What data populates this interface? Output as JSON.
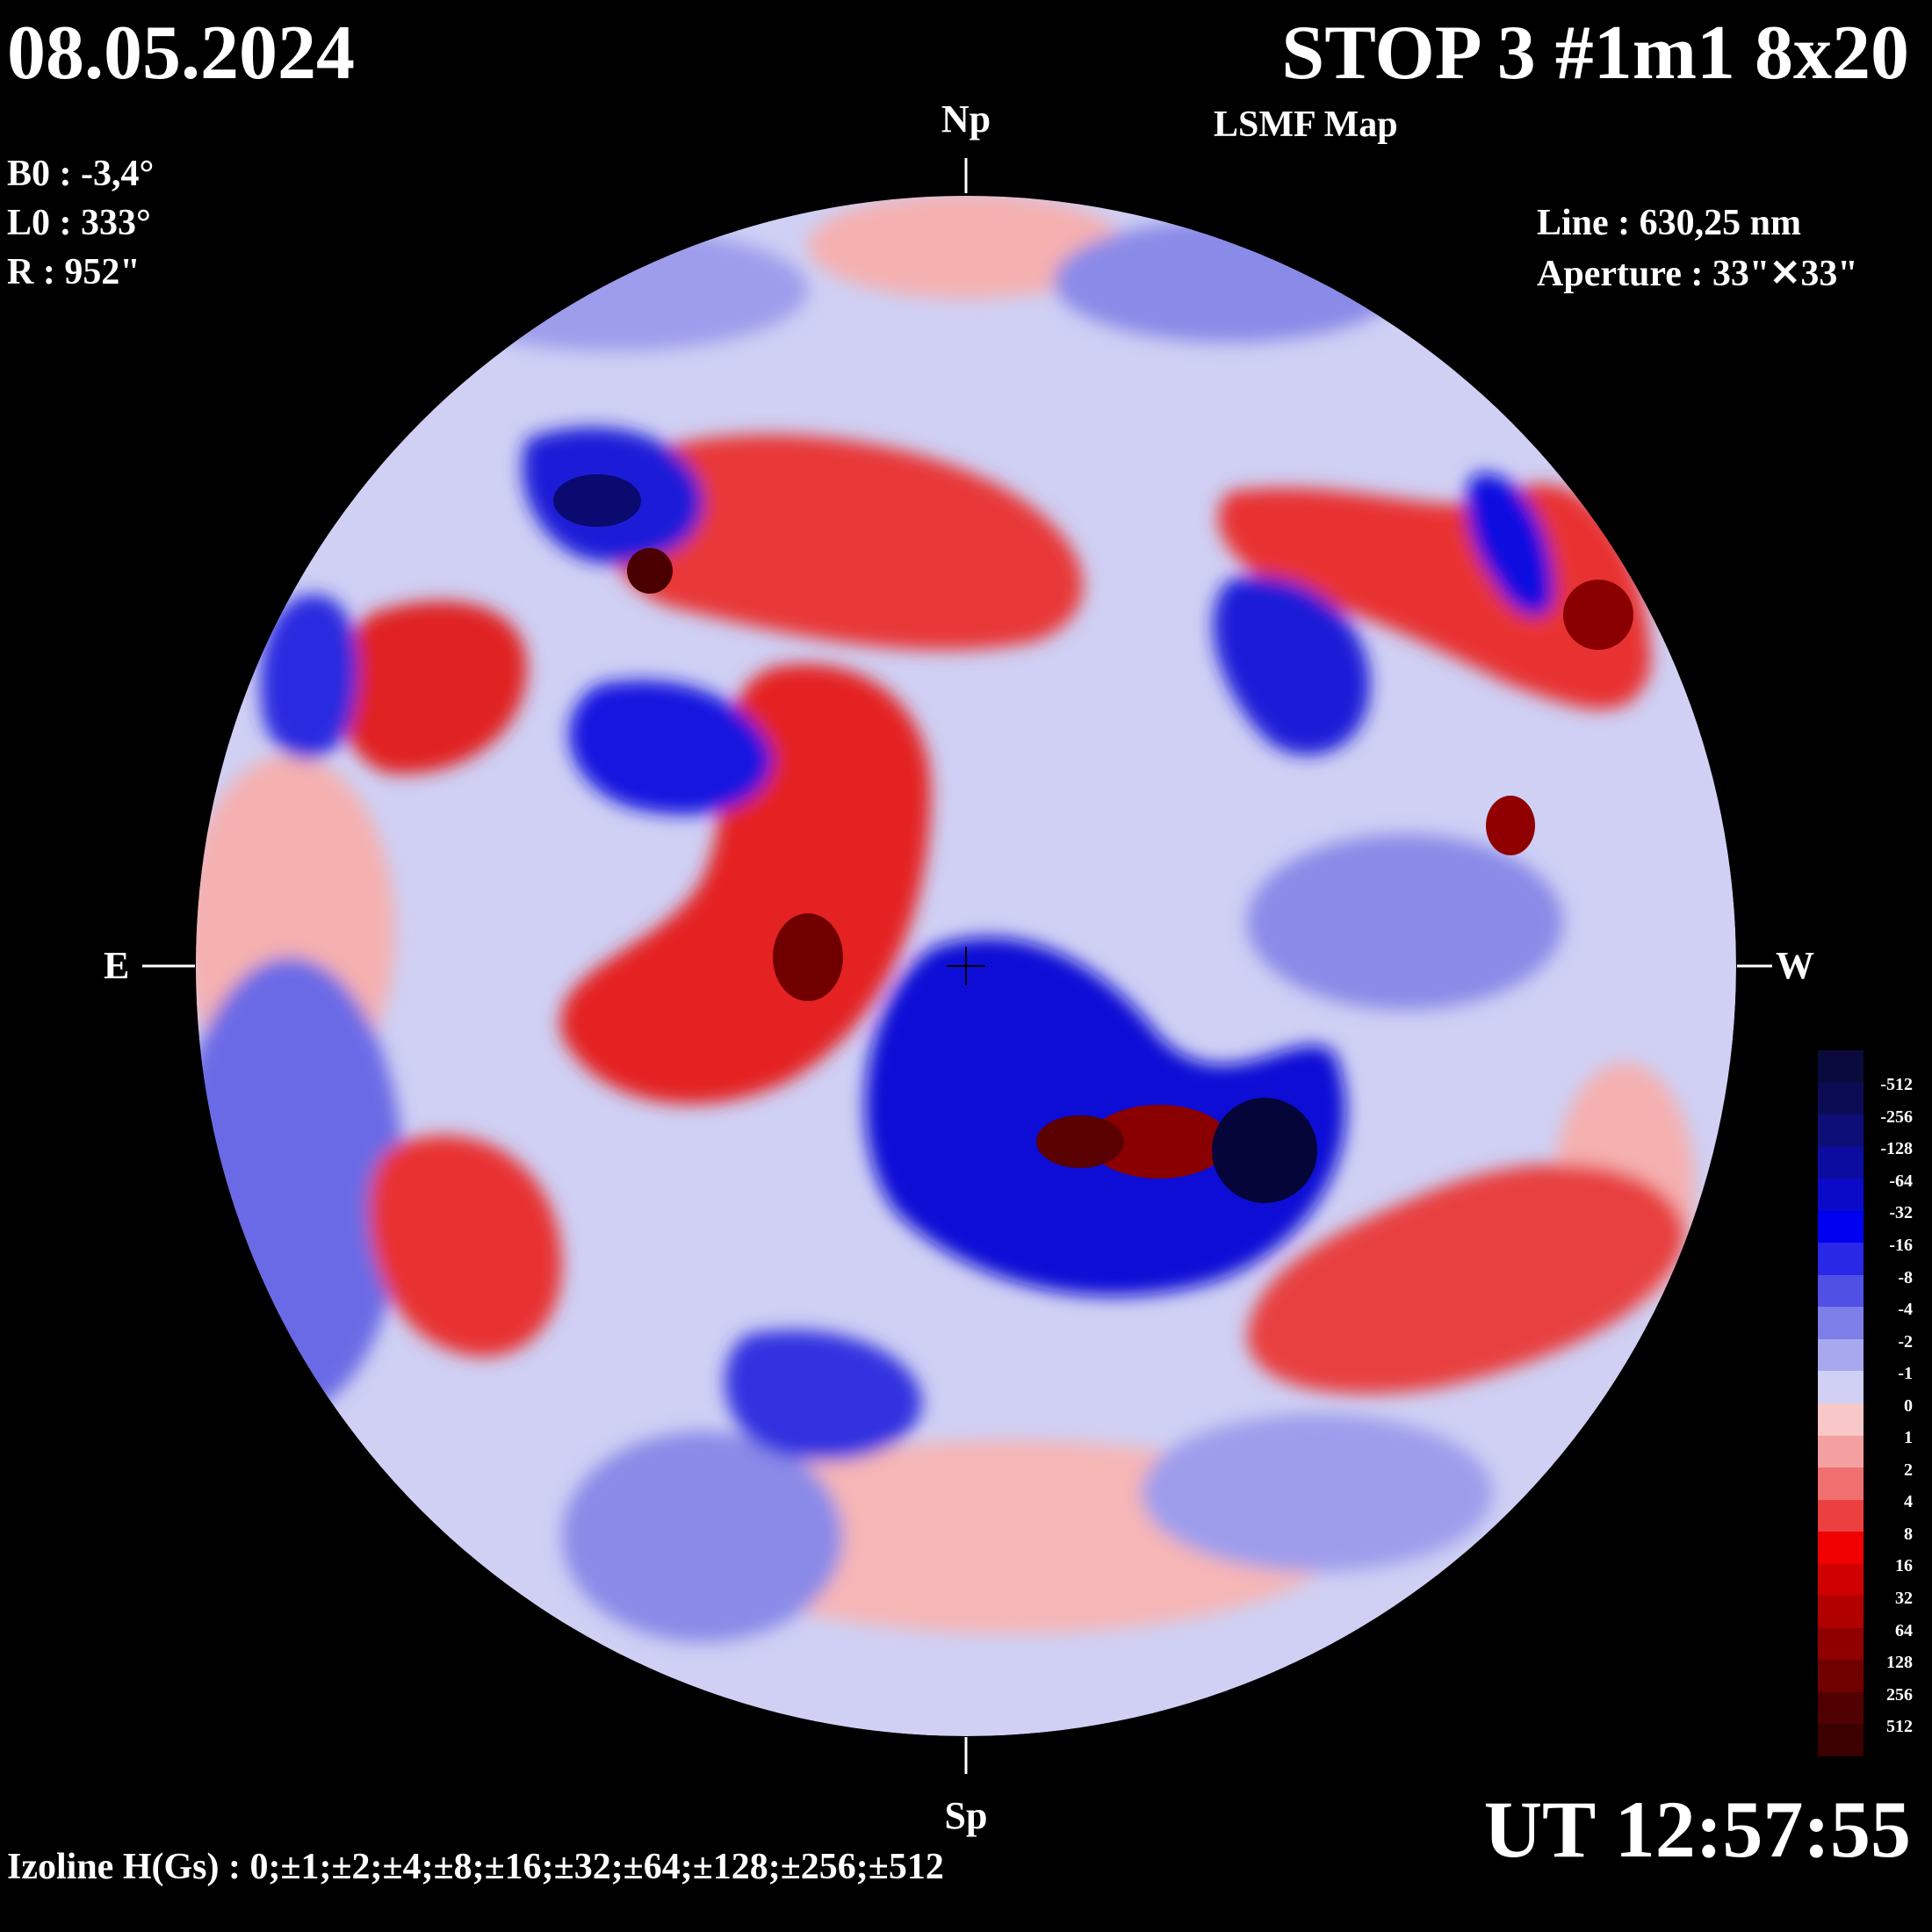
{
  "header": {
    "date": "08.05.2024",
    "title": "STOP 3 #1m1 8x20",
    "subtitle": "LSMF  Map"
  },
  "params": {
    "b0": "B0 : -3,4°",
    "l0": "L0 : 333°",
    "r": "R  : 952\"",
    "line": "Line :  630,25 nm",
    "aperture": "Aperture : 33\"✕33\""
  },
  "directions": {
    "north": "Np",
    "south": "Sp",
    "east": "E",
    "west": "W"
  },
  "footer": {
    "ut": "UT 12:57:55",
    "izoline": "Izoline H(Gs) : 0;±1;±2;±4;±8;±16;±32;±64;±128;±256;±512"
  },
  "legend": {
    "levels": [
      {
        "label": "-512",
        "color": "#0a0a3c"
      },
      {
        "label": "-256",
        "color": "#0c0c55"
      },
      {
        "label": "-128",
        "color": "#0e0e78"
      },
      {
        "label": "-64",
        "color": "#0c0ca0"
      },
      {
        "label": "-32",
        "color": "#0a0ac8"
      },
      {
        "label": "-16",
        "color": "#0000f0"
      },
      {
        "label": "-8",
        "color": "#2828e6"
      },
      {
        "label": "-4",
        "color": "#5050e4"
      },
      {
        "label": "-2",
        "color": "#7e7ee8"
      },
      {
        "label": "-1",
        "color": "#a8a8ee"
      },
      {
        "label": "0",
        "color": "#cfd0f4"
      },
      {
        "label": "1",
        "color": "#f8c8c8"
      },
      {
        "label": "2",
        "color": "#f5a0a0"
      },
      {
        "label": "4",
        "color": "#f07070"
      },
      {
        "label": "8",
        "color": "#ec4040"
      },
      {
        "label": "16",
        "color": "#f00000"
      },
      {
        "label": "32",
        "color": "#d00000"
      },
      {
        "label": "64",
        "color": "#b00000"
      },
      {
        "label": "128",
        "color": "#900000"
      },
      {
        "label": "256",
        "color": "#700000"
      },
      {
        "label": "512",
        "color": "#500000"
      }
    ],
    "bottom_color": "#3c0000",
    "top_color": "#060628"
  }
}
